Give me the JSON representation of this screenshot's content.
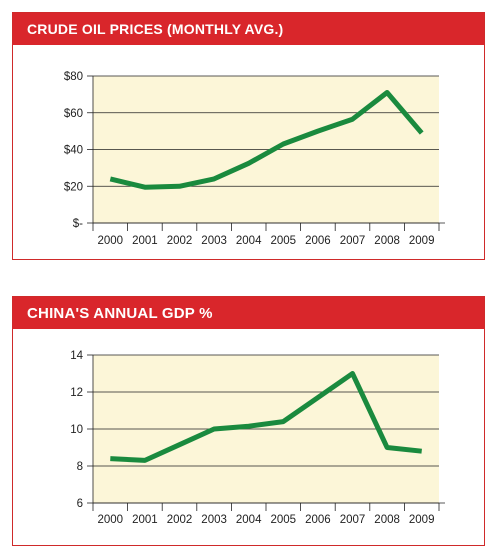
{
  "chart_data": [
    {
      "type": "line",
      "title": "CRUDE OIL PRICES (MONTHLY AVG.)",
      "categories": [
        "2000",
        "2001",
        "2002",
        "2003",
        "2004",
        "2005",
        "2006",
        "2007",
        "2008",
        "2009"
      ],
      "y_tick_labels": [
        "$-",
        "$20",
        "$40",
        "$60",
        "$80"
      ],
      "y_ticks": [
        0,
        20,
        40,
        60,
        80
      ],
      "ylim": [
        0,
        80
      ],
      "grid": true,
      "series": [
        {
          "values": [
            24,
            19.5,
            20,
            24,
            32.5,
            43,
            50,
            56.5,
            71,
            49
          ]
        }
      ]
    },
    {
      "type": "line",
      "title": "CHINA'S ANNUAL GDP %",
      "categories": [
        "2000",
        "2001",
        "2002",
        "2003",
        "2004",
        "2005",
        "2006",
        "2007",
        "2008",
        "2009"
      ],
      "y_tick_labels": [
        "6",
        "8",
        "10",
        "12",
        "14"
      ],
      "y_ticks": [
        6,
        8,
        10,
        12,
        14
      ],
      "ylim": [
        6,
        14
      ],
      "grid": true,
      "series": [
        {
          "values": [
            8.4,
            8.3,
            9.15,
            10.0,
            10.15,
            10.4,
            11.7,
            13.0,
            9.0,
            8.8
          ]
        }
      ]
    }
  ],
  "colors": {
    "header": "#d9262b",
    "border": "#cf2a2a",
    "plot_bg": "#fcf6d8",
    "line": "#1a8a3e",
    "grid": "#222222"
  }
}
